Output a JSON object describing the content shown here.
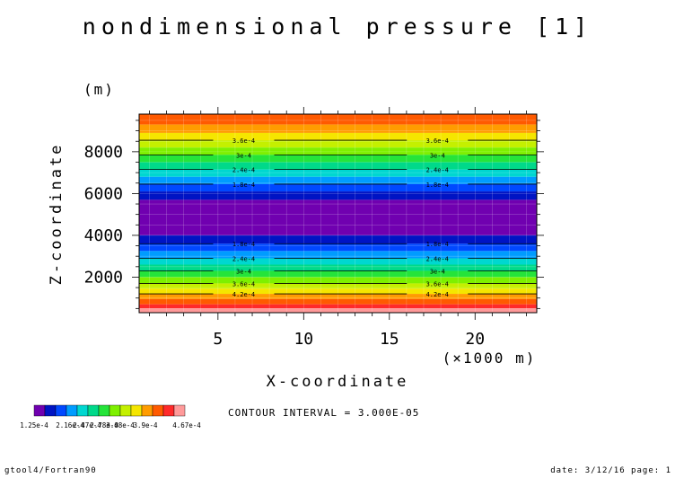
{
  "chart_data": {
    "type": "heatmap",
    "title": "nondimensional pressure [1]",
    "xlabel": "X-coordinate",
    "x_unit": "(×1000 m)",
    "ylabel": "Z-coordinate",
    "y_unit": "(m)",
    "xlim": [
      0.4,
      23.6
    ],
    "ylim": [
      300,
      9800
    ],
    "x_ticks": [
      5,
      10,
      15,
      20
    ],
    "y_ticks": [
      2000,
      4000,
      6000,
      8000
    ],
    "grid": true,
    "bands": [
      {
        "z0": 9300,
        "z1": 9800,
        "color": "#ff5a00"
      },
      {
        "z0": 8900,
        "z1": 9300,
        "color": "#ff9c00"
      },
      {
        "z0": 8550,
        "z1": 8900,
        "color": "#f5e600"
      },
      {
        "z0": 8200,
        "z1": 8550,
        "color": "#c4f000"
      },
      {
        "z0": 7850,
        "z1": 8200,
        "color": "#7ef000"
      },
      {
        "z0": 7500,
        "z1": 7850,
        "color": "#25e43a"
      },
      {
        "z0": 7150,
        "z1": 7500,
        "color": "#00d98a"
      },
      {
        "z0": 6800,
        "z1": 7150,
        "color": "#00d7d0"
      },
      {
        "z0": 6450,
        "z1": 6800,
        "color": "#009cff"
      },
      {
        "z0": 6100,
        "z1": 6450,
        "color": "#0048ff"
      },
      {
        "z0": 5700,
        "z1": 6100,
        "color": "#0014c4"
      },
      {
        "z0": 4000,
        "z1": 5700,
        "color": "#7000b0"
      },
      {
        "z0": 3600,
        "z1": 4000,
        "color": "#0014c4"
      },
      {
        "z0": 3250,
        "z1": 3600,
        "color": "#0048ff"
      },
      {
        "z0": 2900,
        "z1": 3250,
        "color": "#009cff"
      },
      {
        "z0": 2600,
        "z1": 2900,
        "color": "#00d7d0"
      },
      {
        "z0": 2300,
        "z1": 2600,
        "color": "#00d98a"
      },
      {
        "z0": 2000,
        "z1": 2300,
        "color": "#25e43a"
      },
      {
        "z0": 1700,
        "z1": 2000,
        "color": "#7ef000"
      },
      {
        "z0": 1450,
        "z1": 1700,
        "color": "#c4f000"
      },
      {
        "z0": 1200,
        "z1": 1450,
        "color": "#f5e600"
      },
      {
        "z0": 950,
        "z1": 1200,
        "color": "#ff9c00"
      },
      {
        "z0": 700,
        "z1": 950,
        "color": "#ff5a00"
      },
      {
        "z0": 500,
        "z1": 700,
        "color": "#ff2a2a"
      },
      {
        "z0": 300,
        "z1": 500,
        "color": "#ff9a9a"
      }
    ],
    "contours": [
      {
        "z": 8550,
        "label": "3.6e-4"
      },
      {
        "z": 7850,
        "label": "3e-4"
      },
      {
        "z": 7150,
        "label": "2.4e-4"
      },
      {
        "z": 6450,
        "label": "1.8e-4"
      },
      {
        "z": 3600,
        "label": "1.8e-4"
      },
      {
        "z": 2900,
        "label": "2.4e-4"
      },
      {
        "z": 2300,
        "label": "3e-4"
      },
      {
        "z": 1700,
        "label": "3.6e-4"
      },
      {
        "z": 1200,
        "label": "4.2e-4"
      }
    ],
    "contour_label_x": [
      6.5,
      17.8
    ],
    "colorbar": {
      "colors": [
        "#7000b0",
        "#0014c4",
        "#0048ff",
        "#009cff",
        "#00d7d0",
        "#00d98a",
        "#25e43a",
        "#7ef000",
        "#c4f000",
        "#f5e600",
        "#ff9c00",
        "#ff5a00",
        "#ff2a2a",
        "#ff9a9a"
      ],
      "labels": [
        "1.25e-4",
        "2.16e-4",
        "2.47e-4",
        "2.78e-4",
        "3.08e-4",
        "3.9e-4",
        "4.67e-4"
      ]
    },
    "contour_interval_text": "CONTOUR INTERVAL = 3.000E-05"
  },
  "footer": {
    "left": "gtool4/Fortran90",
    "right": "date: 3/12/16 page: 1"
  }
}
